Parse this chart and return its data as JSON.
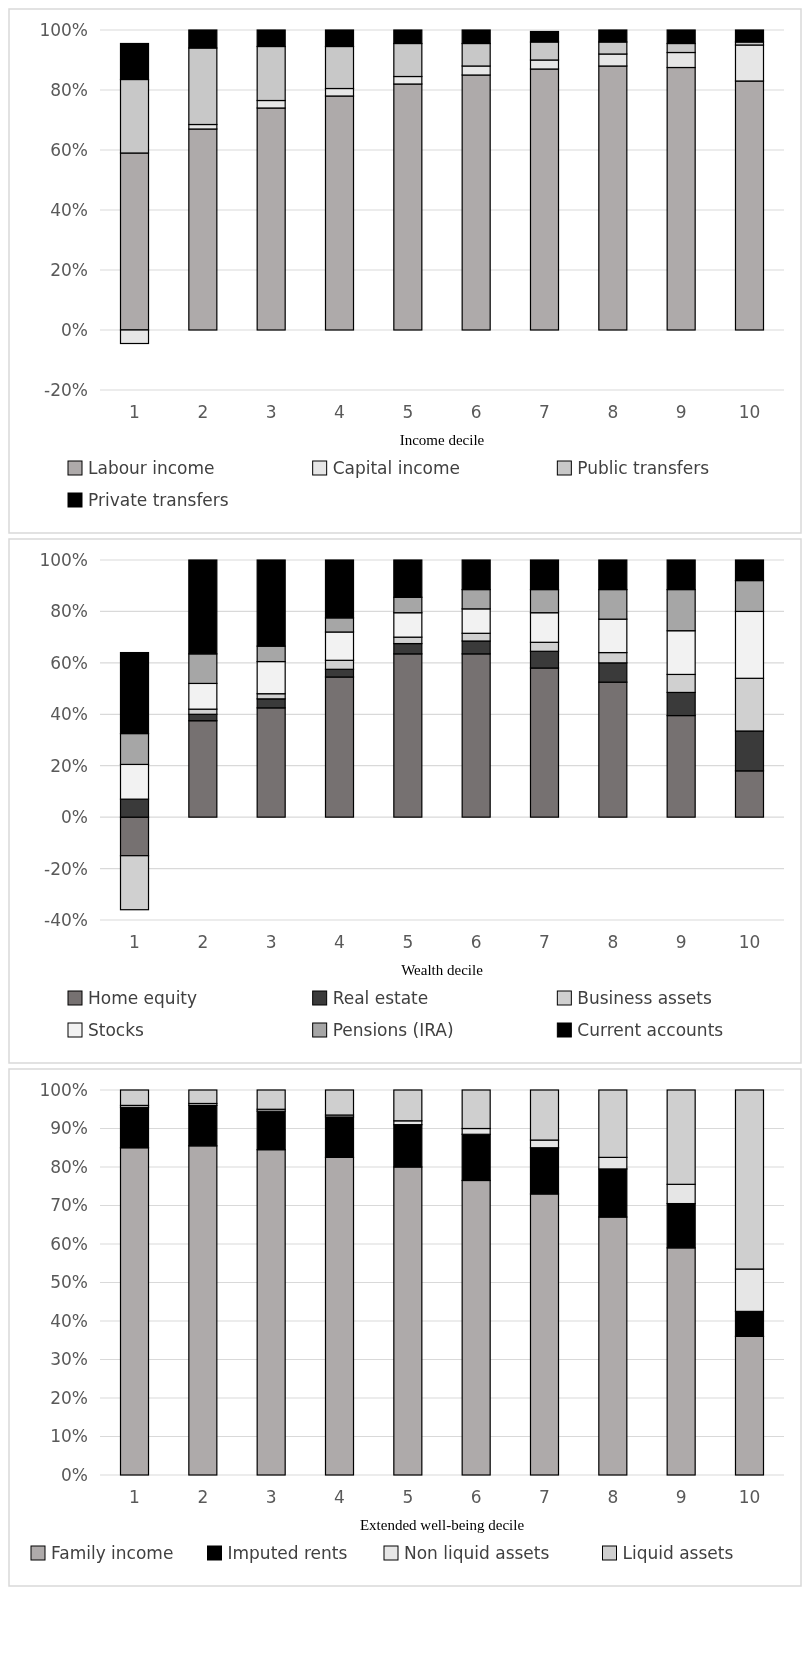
{
  "chart_data": [
    {
      "type": "bar",
      "stacked": true,
      "xlabel": "Income decile",
      "categories": [
        "1",
        "2",
        "3",
        "4",
        "5",
        "6",
        "7",
        "8",
        "9",
        "10"
      ],
      "ylim": [
        -20,
        100
      ],
      "yticks": [
        {
          "value": -20,
          "label": "-20%"
        },
        {
          "value": 0,
          "label": "0%"
        },
        {
          "value": 20,
          "label": "20%"
        },
        {
          "value": 40,
          "label": "40%"
        },
        {
          "value": 60,
          "label": "60%"
        },
        {
          "value": 80,
          "label": "80%"
        },
        {
          "value": 100,
          "label": "100%"
        }
      ],
      "grid": "y",
      "legend": "bottom",
      "series": [
        {
          "name": "Labour income",
          "color": "#aeaaaa",
          "values": [
            59,
            67,
            74,
            78,
            82,
            85,
            87,
            88,
            87.5,
            83
          ]
        },
        {
          "name": "Capital income",
          "color": "#e6e6e6",
          "values": [
            -4.5,
            1.5,
            2.5,
            2.5,
            2.5,
            3,
            3,
            4,
            5,
            12
          ]
        },
        {
          "name": "Public transfers",
          "color": "#c8c8c8",
          "values": [
            24.5,
            25.5,
            18,
            14,
            11,
            7.5,
            6,
            4,
            3,
            1
          ]
        },
        {
          "name": "Private transfers",
          "color": "#000000",
          "values": [
            12,
            6,
            5.5,
            5.5,
            4.5,
            4.5,
            3.5,
            4,
            4.5,
            4
          ]
        }
      ]
    },
    {
      "type": "bar",
      "stacked": true,
      "xlabel": "Wealth decile",
      "categories": [
        "1",
        "2",
        "3",
        "4",
        "5",
        "6",
        "7",
        "8",
        "9",
        "10"
      ],
      "ylim": [
        -40,
        100
      ],
      "yticks": [
        {
          "value": -40,
          "label": "-40%"
        },
        {
          "value": -20,
          "label": "-20%"
        },
        {
          "value": 0,
          "label": "0%"
        },
        {
          "value": 20,
          "label": "20%"
        },
        {
          "value": 40,
          "label": "40%"
        },
        {
          "value": 60,
          "label": "60%"
        },
        {
          "value": 80,
          "label": "80%"
        },
        {
          "value": 100,
          "label": "100%"
        }
      ],
      "grid": "y",
      "legend": "bottom",
      "series": [
        {
          "name": "Home equity",
          "color": "#767171",
          "values": [
            -15,
            37.5,
            42.5,
            54.5,
            63.5,
            63.5,
            58,
            52.5,
            39.5,
            18
          ]
        },
        {
          "name": "Real estate",
          "color": "#3a3a3a",
          "values": [
            7,
            2.5,
            3.5,
            3,
            4,
            5,
            6.5,
            7.5,
            9,
            15.5
          ]
        },
        {
          "name": "Business assets",
          "color": "#d0d0d0",
          "values": [
            -21,
            2,
            2,
            3.5,
            2.5,
            3,
            3.5,
            4,
            7,
            20.5
          ]
        },
        {
          "name": "Stocks",
          "color": "#f2f2f2",
          "values": [
            13.5,
            10,
            12.5,
            11,
            9.5,
            9.5,
            11.5,
            13,
            17,
            26
          ]
        },
        {
          "name": "Pensions (IRA)",
          "color": "#a6a6a6",
          "values": [
            12,
            11.5,
            6,
            5.5,
            6,
            7.5,
            9,
            11.5,
            16,
            12
          ]
        },
        {
          "name": "Current accounts",
          "color": "#000000",
          "values": [
            31.5,
            36.5,
            33.5,
            22.5,
            14.5,
            11.5,
            11.5,
            11.5,
            11.5,
            8
          ]
        }
      ]
    },
    {
      "type": "bar",
      "stacked": true,
      "xlabel": "Extended well-being decile",
      "categories": [
        "1",
        "2",
        "3",
        "4",
        "5",
        "6",
        "7",
        "8",
        "9",
        "10"
      ],
      "ylim": [
        0,
        100
      ],
      "yticks": [
        {
          "value": 0,
          "label": "0%"
        },
        {
          "value": 10,
          "label": "10%"
        },
        {
          "value": 20,
          "label": "20%"
        },
        {
          "value": 30,
          "label": "30%"
        },
        {
          "value": 40,
          "label": "40%"
        },
        {
          "value": 50,
          "label": "50%"
        },
        {
          "value": 60,
          "label": "60%"
        },
        {
          "value": 70,
          "label": "70%"
        },
        {
          "value": 80,
          "label": "80%"
        },
        {
          "value": 90,
          "label": "90%"
        },
        {
          "value": 100,
          "label": "100%"
        }
      ],
      "grid": "y",
      "legend": "bottom",
      "series": [
        {
          "name": "Family income",
          "color": "#aeaaaa",
          "values": [
            85,
            85.5,
            84.5,
            82.5,
            80,
            76.5,
            73,
            67,
            59,
            36
          ]
        },
        {
          "name": "Imputed rents",
          "color": "#000000",
          "values": [
            10.5,
            10.5,
            10,
            10.5,
            11,
            12,
            12,
            12.5,
            11.5,
            6.5
          ]
        },
        {
          "name": "Non liquid assets",
          "color": "#e6e6e6",
          "values": [
            0.5,
            0.5,
            0.5,
            0.5,
            1,
            1.5,
            2,
            3,
            5,
            11
          ]
        },
        {
          "name": "Liquid assets",
          "color": "#cfcfcf",
          "values": [
            4,
            3.5,
            5,
            6.5,
            8,
            10,
            13,
            17.5,
            24.5,
            46.5
          ]
        }
      ]
    }
  ]
}
